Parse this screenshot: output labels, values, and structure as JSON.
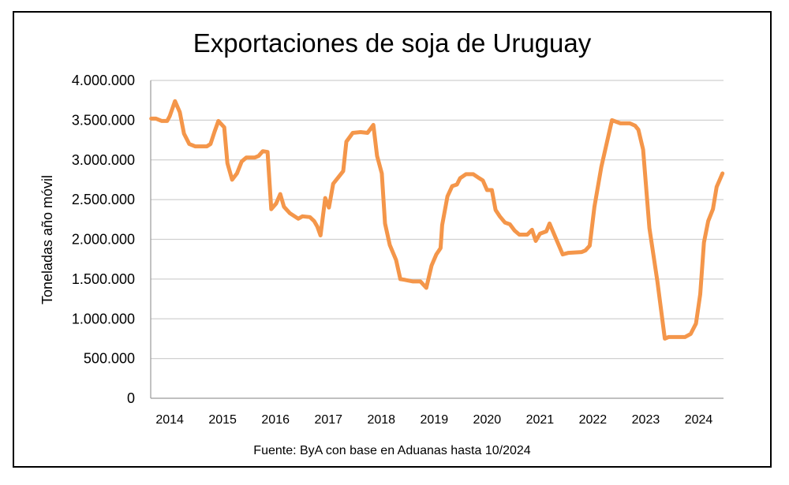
{
  "chart_data": {
    "type": "line",
    "title": "Exportaciones de soja de Uruguay",
    "xlabel": "",
    "ylabel": "Toneladas año móvil",
    "source": "Fuente: ByA con base en Aduanas hasta 10/2024",
    "ylim": [
      0,
      4000000
    ],
    "xlim": [
      2014.0,
      2024.83
    ],
    "grid": true,
    "legend": "none",
    "y_ticks": [
      "0",
      "500.000",
      "1.000.000",
      "1.500.000",
      "2.000.000",
      "2.500.000",
      "3.000.000",
      "3.500.000",
      "4.000.000"
    ],
    "y_tick_values": [
      0,
      500000,
      1000000,
      1500000,
      2000000,
      2500000,
      3000000,
      3500000,
      4000000
    ],
    "x_ticks": [
      "2014",
      "2015",
      "2016",
      "2017",
      "2018",
      "2019",
      "2020",
      "2021",
      "2022",
      "2023",
      "2024"
    ],
    "series": [
      {
        "name": "Exportaciones de soja",
        "color": "#F4964A",
        "x": [
          2014.01,
          2014.1,
          2014.21,
          2014.31,
          2014.36,
          2014.46,
          2014.55,
          2014.63,
          2014.73,
          2014.84,
          2015.06,
          2015.13,
          2015.21,
          2015.28,
          2015.39,
          2015.45,
          2015.54,
          2015.63,
          2015.72,
          2015.81,
          2015.97,
          2016.04,
          2016.12,
          2016.21,
          2016.28,
          2016.37,
          2016.45,
          2016.52,
          2016.63,
          2016.79,
          2016.87,
          2017.01,
          2017.09,
          2017.15,
          2017.21,
          2017.3,
          2017.37,
          2017.45,
          2017.57,
          2017.64,
          2017.7,
          2017.82,
          2017.97,
          2018.1,
          2018.21,
          2018.28,
          2018.37,
          2018.43,
          2018.52,
          2018.64,
          2018.72,
          2018.81,
          2018.96,
          2019.1,
          2019.21,
          2019.31,
          2019.4,
          2019.48,
          2019.51,
          2019.61,
          2019.7,
          2019.79,
          2019.85,
          2019.96,
          2020.1,
          2020.21,
          2020.28,
          2020.36,
          2020.45,
          2020.52,
          2020.6,
          2020.7,
          2020.79,
          2020.88,
          2020.97,
          2021.12,
          2021.21,
          2021.28,
          2021.36,
          2021.48,
          2021.54,
          2021.79,
          2021.9,
          2022.15,
          2022.22,
          2022.3,
          2022.39,
          2022.52,
          2022.72,
          2022.88,
          2023.06,
          2023.16,
          2023.22,
          2023.31,
          2023.43,
          2023.58,
          2023.72,
          2023.79,
          2024.1,
          2024.21,
          2024.31,
          2024.39,
          2024.46,
          2024.54,
          2024.63,
          2024.7,
          2024.81
        ],
        "values": [
          3520000,
          3520000,
          3490000,
          3490000,
          3550000,
          3740000,
          3600000,
          3330000,
          3200000,
          3170000,
          3170000,
          3200000,
          3360000,
          3490000,
          3410000,
          2960000,
          2750000,
          2830000,
          2980000,
          3030000,
          3030000,
          3050000,
          3110000,
          3100000,
          2380000,
          2450000,
          2570000,
          2410000,
          2330000,
          2260000,
          2290000,
          2280000,
          2230000,
          2160000,
          2050000,
          2520000,
          2400000,
          2700000,
          2800000,
          2860000,
          3230000,
          3340000,
          3350000,
          3340000,
          3440000,
          3050000,
          2830000,
          2200000,
          1930000,
          1740000,
          1500000,
          1490000,
          1470000,
          1470000,
          1390000,
          1670000,
          1810000,
          1890000,
          2180000,
          2540000,
          2670000,
          2690000,
          2770000,
          2820000,
          2820000,
          2770000,
          2740000,
          2620000,
          2620000,
          2370000,
          2290000,
          2210000,
          2190000,
          2110000,
          2060000,
          2060000,
          2120000,
          1980000,
          2070000,
          2100000,
          2200000,
          1810000,
          1830000,
          1840000,
          1860000,
          1920000,
          2410000,
          2910000,
          3500000,
          3460000,
          3460000,
          3430000,
          3380000,
          3130000,
          2140000,
          1470000,
          750000,
          770000,
          770000,
          810000,
          940000,
          1310000,
          1960000,
          2230000,
          2380000,
          2660000,
          2830000
        ]
      }
    ]
  }
}
